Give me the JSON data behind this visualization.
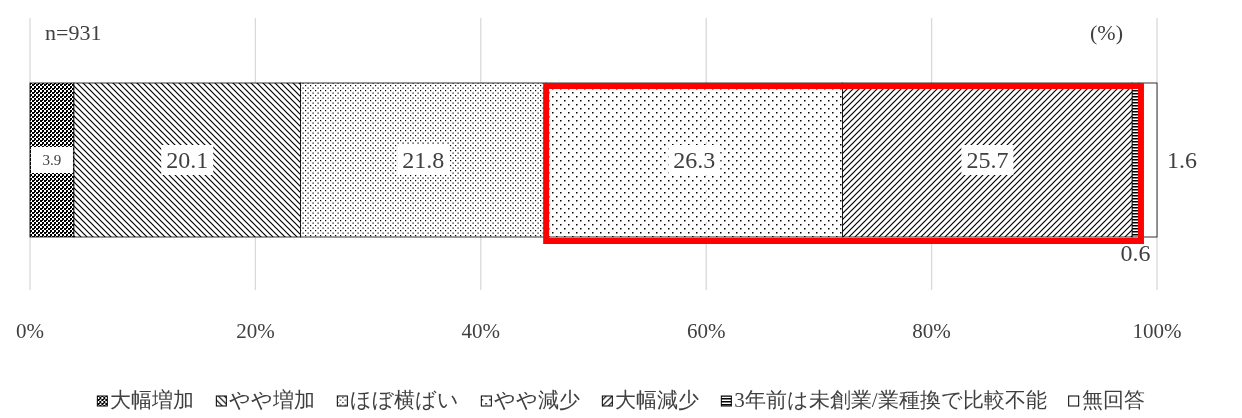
{
  "chart_data": {
    "type": "bar",
    "orientation": "horizontal",
    "stacked": true,
    "categories": [
      null
    ],
    "series": [
      {
        "name": "大幅増加",
        "color": "#000000",
        "values": [
          3.9
        ]
      },
      {
        "name": "やや増加",
        "color": "#000000",
        "values": [
          20.1
        ]
      },
      {
        "name": "ほぼ横ばい",
        "color": "#000000",
        "values": [
          21.8
        ]
      },
      {
        "name": "やや減少",
        "color": "#000000",
        "values": [
          26.3
        ]
      },
      {
        "name": "大幅減少",
        "color": "#000000",
        "values": [
          25.7
        ]
      },
      {
        "name": "3年前は未創業/業種換で比較不能",
        "color": "#000000",
        "values": [
          0.6
        ]
      },
      {
        "name": "無回答",
        "color": "#000000",
        "values": [
          1.6
        ]
      }
    ],
    "xlim": [
      0,
      100
    ],
    "xticks": [
      {
        "value": 0,
        "label": "0%"
      },
      {
        "value": 20,
        "label": "20%"
      },
      {
        "value": 40,
        "label": "40%"
      },
      {
        "value": 60,
        "label": "60%"
      },
      {
        "value": 80,
        "label": "80%"
      },
      {
        "value": 100,
        "label": "100%"
      }
    ],
    "grid": "x",
    "legend": "bottom",
    "data_labels": true,
    "annotations": [
      "n=931",
      "(%)"
    ]
  }
}
